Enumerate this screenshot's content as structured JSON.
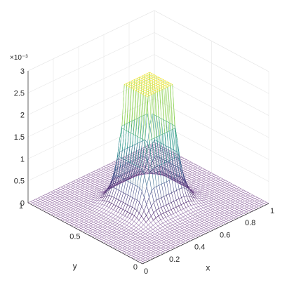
{
  "chart_data": {
    "type": "surface-mesh",
    "title": "",
    "xlabel": "x",
    "ylabel": "y",
    "zlabel": "",
    "xlim": [
      0,
      1
    ],
    "ylim": [
      0,
      1
    ],
    "zlim": [
      0,
      3
    ],
    "z_exponent_label": "×10⁻³",
    "x_ticks": [
      0,
      0.2,
      0.4,
      0.6,
      0.8,
      1
    ],
    "x_tick_labels": [
      "0",
      "0.2",
      "0.4",
      "0.6",
      "0.8",
      "1"
    ],
    "y_ticks": [
      0,
      0.5,
      1
    ],
    "y_tick_labels": [
      "0",
      "0.5",
      "1"
    ],
    "z_ticks": [
      0,
      0.5,
      1,
      1.5,
      2,
      2.5,
      3
    ],
    "z_tick_labels": [
      "0",
      "0.5",
      "1",
      "1.5",
      "2",
      "2.5",
      "3"
    ],
    "grid": true,
    "colormap": [
      "#440154",
      "#3b528b",
      "#21918c",
      "#5ec962",
      "#fde725"
    ],
    "surface": {
      "description_of_shape": "flat plateau at top over center square, decaying to zero toward edges",
      "plateau_value": 2.7,
      "plateau_region": {
        "x": [
          0.4,
          0.6
        ],
        "y": [
          0.4,
          0.6
        ]
      },
      "base_value": 0.0
    }
  }
}
